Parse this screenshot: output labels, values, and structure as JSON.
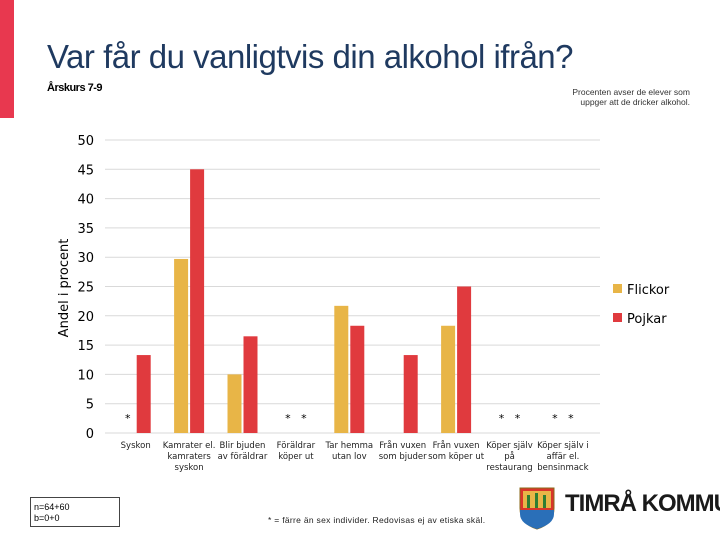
{
  "header": {
    "title": "Var får du vanligtvis din alkohol ifrån?",
    "subtitle": "Årskurs 7-9",
    "note_line1": "Procenten avser de elever som",
    "note_line2": "uppger att de dricker alkohol."
  },
  "sample": {
    "line1": "n=64+60",
    "line2": "b=0+0"
  },
  "footnote": {
    "text": "* = färre än sex individer. Redovisas ej av etiska skäl."
  },
  "logo": {
    "text": "TIMRÅ KOMMUN",
    "icon": "municipal-crest-icon"
  },
  "colors": {
    "flickor": "#e8b547",
    "pojkar": "#e03a3e",
    "accent": "#e8384f",
    "title": "#1f3a60"
  },
  "chart_data": {
    "type": "bar",
    "title": "Var får du vanligtvis din alkohol ifrån?",
    "xlabel": "",
    "ylabel": "Andel i procent",
    "ylim": [
      0,
      50
    ],
    "yticks": [
      0,
      5,
      10,
      15,
      20,
      25,
      30,
      35,
      40,
      45,
      50
    ],
    "grid": true,
    "legend_position": "right",
    "categories": [
      [
        "Syskon"
      ],
      [
        "Kamrater el.",
        "kamraters",
        "syskon"
      ],
      [
        "Blir bjuden",
        "av föräldrar"
      ],
      [
        "Föräldrar",
        "köper ut"
      ],
      [
        "Tar hemma",
        "utan lov"
      ],
      [
        "Från vuxen",
        "som bjuder"
      ],
      [
        "Från vuxen",
        "som köper ut"
      ],
      [
        "Köper själv",
        "på",
        "restaurang"
      ],
      [
        "Köper själv i",
        "affär el.",
        "bensinmack"
      ]
    ],
    "series": [
      {
        "name": "Flickor",
        "values": [
          null,
          29.7,
          10,
          null,
          21.7,
          null,
          18.3,
          null,
          null
        ],
        "markers": [
          "*",
          "",
          "",
          "*",
          "",
          "",
          "",
          "*",
          "*"
        ]
      },
      {
        "name": "Pojkar",
        "values": [
          13.3,
          45,
          16.5,
          null,
          18.3,
          13.3,
          25,
          null,
          null
        ],
        "markers": [
          "",
          "",
          "",
          "*",
          "",
          "",
          "",
          "*",
          "*"
        ]
      }
    ]
  }
}
